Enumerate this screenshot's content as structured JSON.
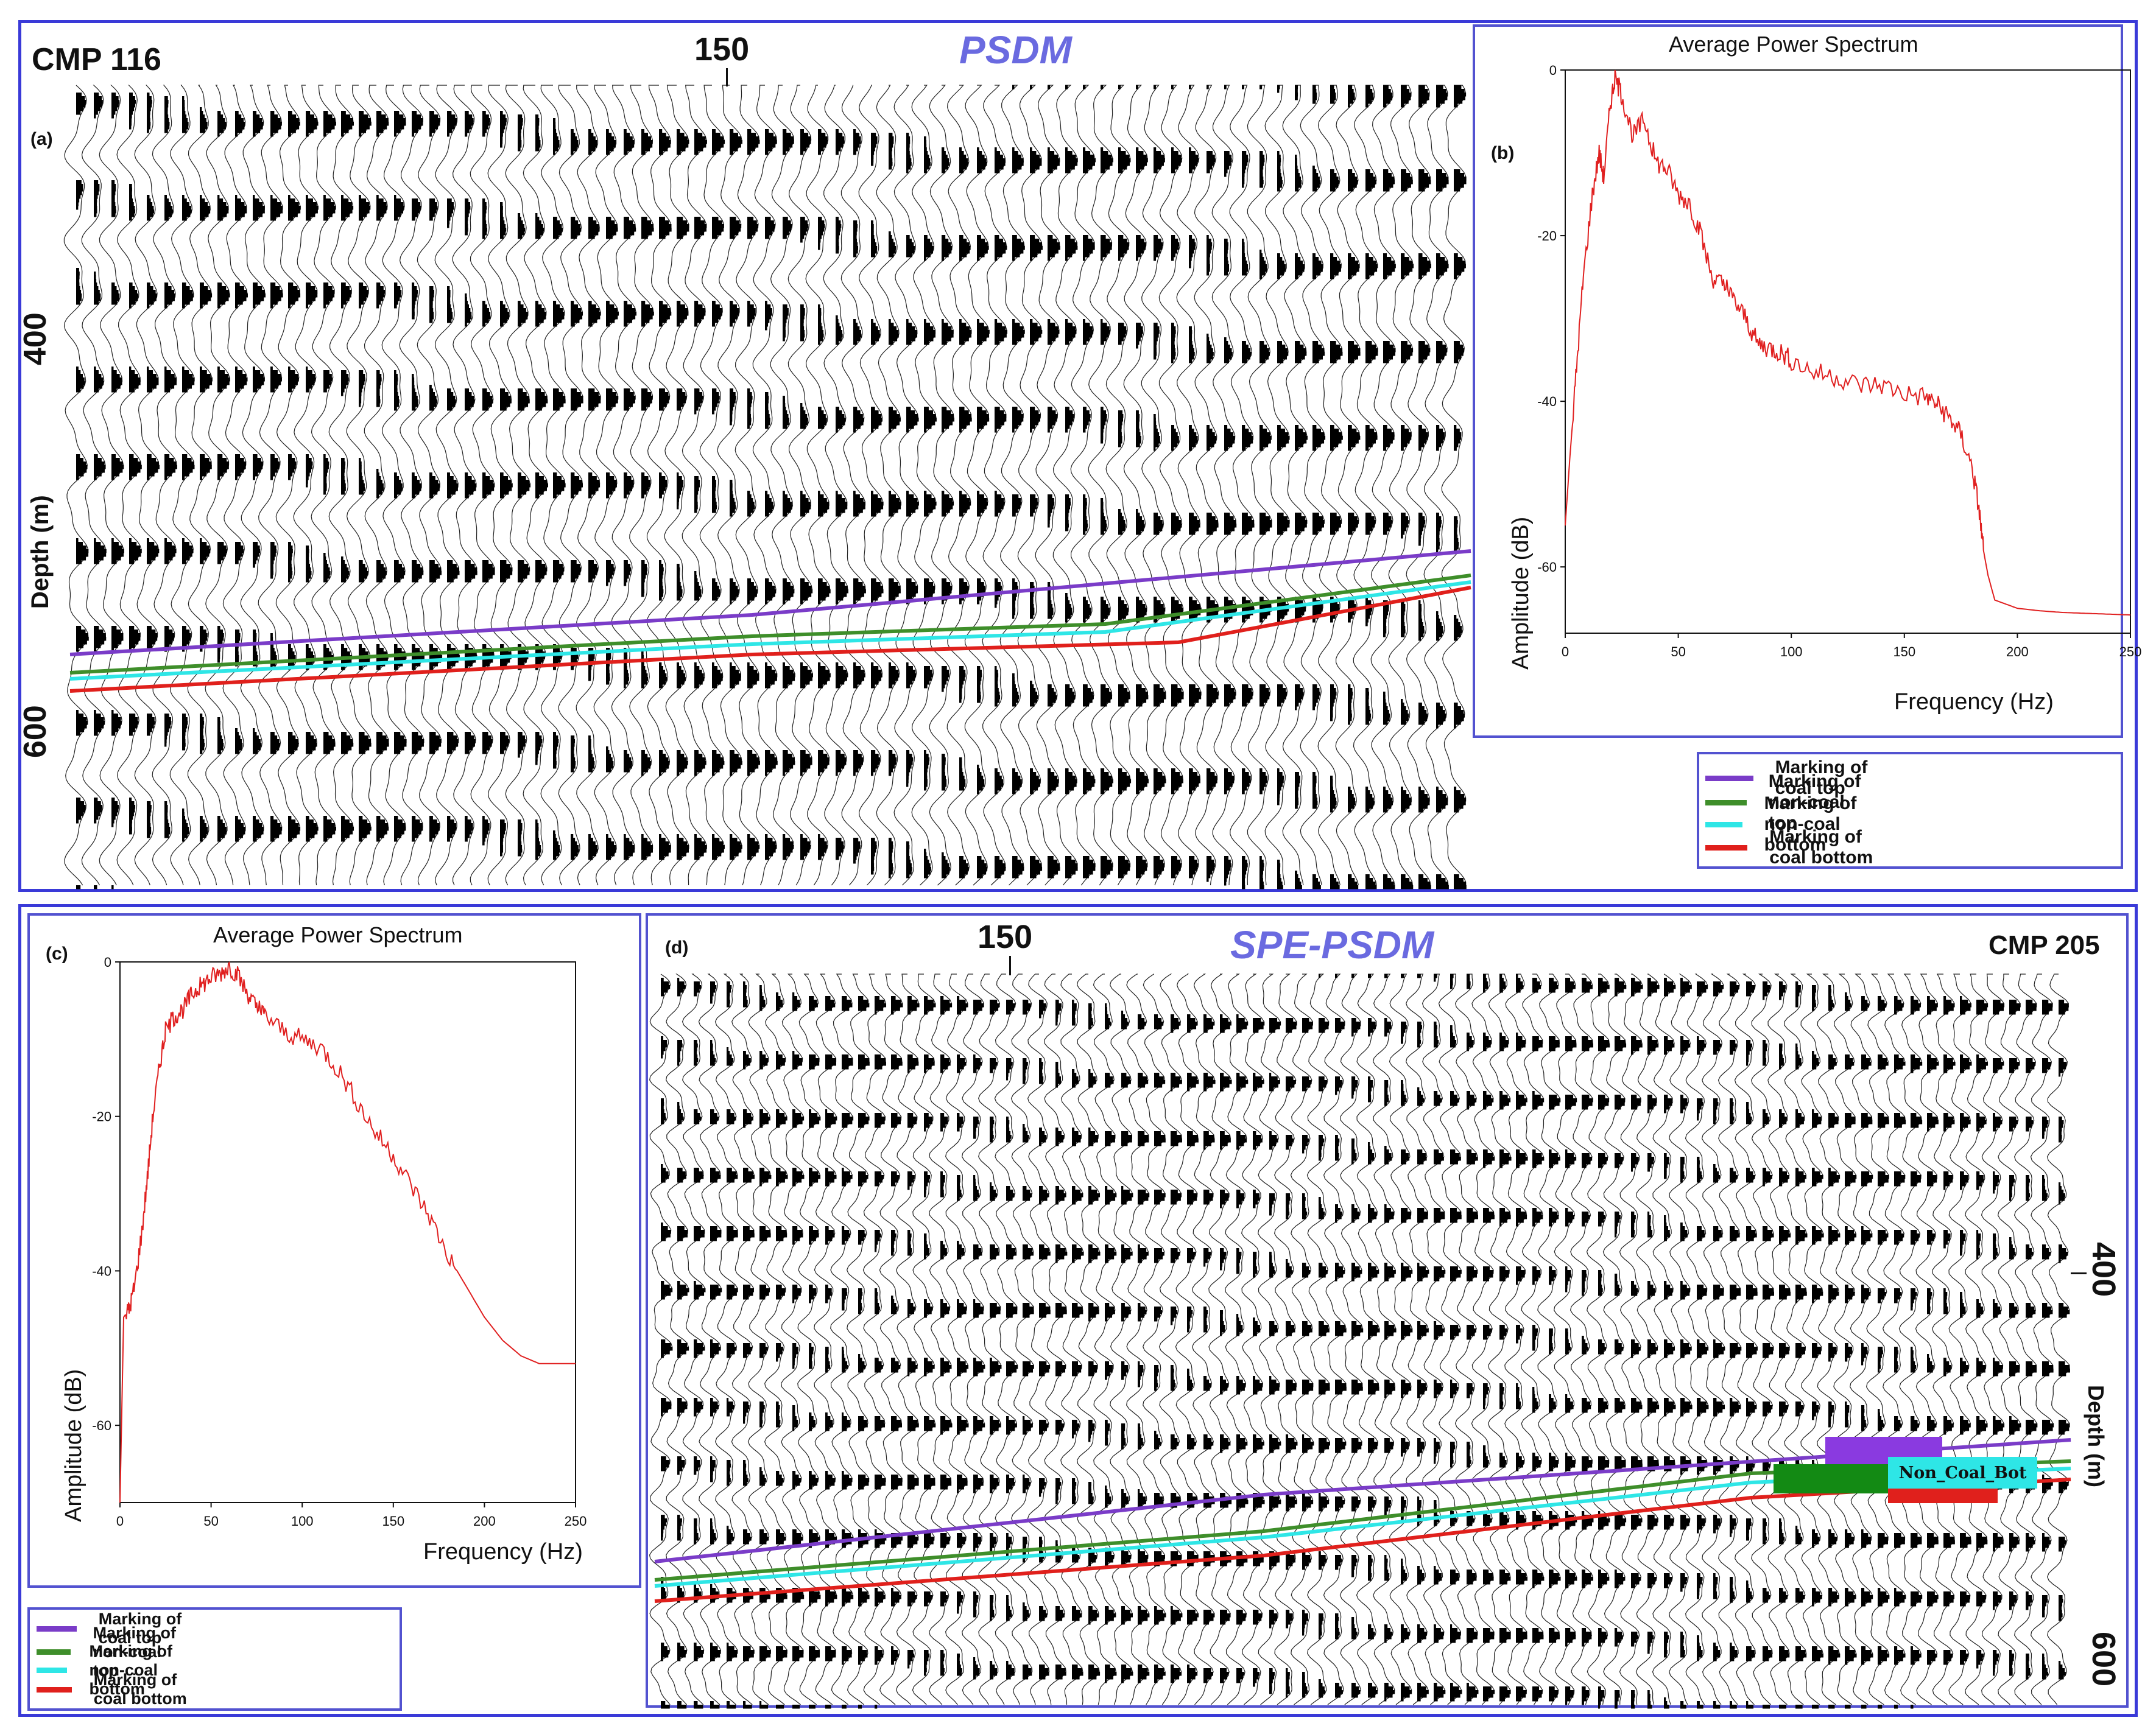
{
  "panel_top": {
    "cmp_label": "CMP 116",
    "title": "PSDM",
    "cdp_tick": "150",
    "panel_letter": "(a)",
    "depth_ticks": [
      "400",
      "600"
    ],
    "depth_label": "Depth (m)"
  },
  "panel_bottom": {
    "cmp_label": "CMP 205",
    "title": "SPE-PSDM",
    "cdp_tick": "150",
    "panel_letter": "(d)",
    "depth_ticks": [
      "400",
      "600"
    ],
    "depth_label": "Depth (m)",
    "annotation": "Non_Coal_Bot"
  },
  "legend": [
    {
      "label": "Marking of coal top",
      "color": "#7a3cc8"
    },
    {
      "label": "Marking of non-coal top",
      "color": "#3e8e2a"
    },
    {
      "label": "Marking of non-coal bottom",
      "color": "#2ee6e6"
    },
    {
      "label": "Marking of coal bottom",
      "color": "#e0201c"
    }
  ],
  "chart_data": [
    {
      "type": "line",
      "panel_letter": "(b)",
      "title": "Average Power Spectrum",
      "xlabel": "Frequency (Hz)",
      "ylabel": "Amplitude (dB)",
      "xlim": [
        0,
        250
      ],
      "ylim": [
        -68,
        0
      ],
      "xticks": [
        0,
        50,
        100,
        150,
        200,
        250
      ],
      "yticks": [
        0,
        -20,
        -40,
        -60
      ],
      "color": "#e02020",
      "series": [
        {
          "x": [
            0,
            2,
            5,
            8,
            12,
            15,
            17,
            20,
            22,
            25,
            30,
            35,
            40,
            45,
            50,
            55,
            60,
            65,
            70,
            75,
            80,
            85,
            90,
            95,
            100,
            110,
            120,
            130,
            140,
            150,
            160,
            165,
            170,
            175,
            180,
            183,
            185,
            187,
            190,
            200,
            210,
            220,
            230,
            240,
            250
          ],
          "y": [
            -55,
            -47,
            -36,
            -25,
            -15,
            -10,
            -13,
            -4,
            -1,
            -3,
            -8,
            -6,
            -11,
            -12,
            -15,
            -16,
            -20,
            -25,
            -26,
            -28,
            -30,
            -33,
            -33.5,
            -34,
            -35,
            -36.5,
            -37,
            -38,
            -38,
            -39,
            -39.5,
            -40.5,
            -42,
            -44,
            -48,
            -53,
            -58,
            -61,
            -64,
            -65,
            -65.3,
            -65.5,
            -65.6,
            -65.7,
            -65.8
          ]
        }
      ]
    },
    {
      "type": "line",
      "panel_letter": "(c)",
      "title": "Average Power Spectrum",
      "xlabel": "Frequency (Hz)",
      "ylabel": "Amplitude (dB)",
      "xlim": [
        0,
        250
      ],
      "ylim": [
        -70,
        0
      ],
      "xticks": [
        0,
        50,
        100,
        150,
        200,
        250
      ],
      "yticks": [
        0,
        -20,
        -40,
        -60
      ],
      "color": "#e02020",
      "series": [
        {
          "x": [
            0,
            2,
            5,
            8,
            12,
            15,
            18,
            22,
            25,
            30,
            35,
            40,
            45,
            50,
            55,
            60,
            65,
            70,
            75,
            80,
            90,
            100,
            110,
            120,
            130,
            140,
            150,
            160,
            170,
            180,
            190,
            200,
            210,
            220,
            230,
            240,
            250
          ],
          "y": [
            -70,
            -46,
            -45,
            -42,
            -35,
            -28,
            -20,
            -13,
            -9,
            -7,
            -6,
            -4,
            -3,
            -2,
            -1.5,
            -0.5,
            -2,
            -4,
            -6,
            -7,
            -9,
            -10,
            -11,
            -14,
            -18,
            -22,
            -25,
            -29,
            -33,
            -38,
            -42,
            -46,
            -49,
            -51,
            -52,
            -52,
            -52
          ]
        }
      ]
    }
  ]
}
